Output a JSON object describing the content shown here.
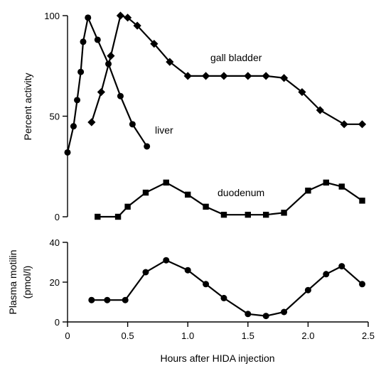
{
  "chart_data": [
    {
      "type": "line",
      "ylabel": "Percent activity",
      "ylim": [
        0,
        100
      ],
      "xlim": [
        0,
        2.5
      ],
      "yticks": [
        0,
        50,
        100
      ],
      "ytick_labels": [
        "0",
        "50",
        "100"
      ],
      "series": [
        {
          "name": "liver",
          "marker": "circle",
          "x": [
            0.0,
            0.05,
            0.08,
            0.11,
            0.13,
            0.17,
            0.25,
            0.34,
            0.44,
            0.54,
            0.66
          ],
          "y": [
            32,
            45,
            58,
            72,
            87,
            99,
            88,
            76,
            60,
            46,
            35
          ]
        },
        {
          "name": "gall bladder",
          "marker": "diamond",
          "x": [
            0.2,
            0.28,
            0.36,
            0.44,
            0.5,
            0.58,
            0.72,
            0.85,
            1.0,
            1.15,
            1.3,
            1.5,
            1.65,
            1.8,
            1.95,
            2.1,
            2.3,
            2.45
          ],
          "y": [
            47,
            62,
            80,
            100,
            99,
            95,
            86,
            77,
            70,
            70,
            70,
            70,
            70,
            69,
            62,
            53,
            46,
            46
          ]
        },
        {
          "name": "duodenum",
          "marker": "square",
          "x": [
            0.25,
            0.42,
            0.5,
            0.65,
            0.82,
            1.0,
            1.15,
            1.3,
            1.5,
            1.65,
            1.8,
            2.0,
            2.15,
            2.28,
            2.45
          ],
          "y": [
            0,
            0,
            5,
            12,
            17,
            11,
            5,
            1,
            1,
            1,
            2,
            13,
            17,
            15,
            8
          ]
        }
      ]
    },
    {
      "type": "line",
      "ylabel_lines": [
        "Plasma motilin",
        "(pmol/l)"
      ],
      "xlabel": "Hours after HIDA injection",
      "ylim": [
        0,
        40
      ],
      "xlim": [
        0,
        2.5
      ],
      "yticks": [
        0,
        20,
        40
      ],
      "ytick_labels": [
        "0",
        "20",
        "40"
      ],
      "xticks": [
        0,
        0.5,
        1.0,
        1.5,
        2.0,
        2.5
      ],
      "xtick_labels": [
        "0",
        "0.5",
        "1.0",
        "1.5",
        "2.0",
        "2.5"
      ],
      "series": [
        {
          "marker": "circle",
          "x": [
            0.2,
            0.33,
            0.48,
            0.65,
            0.82,
            1.0,
            1.15,
            1.3,
            1.5,
            1.65,
            1.8,
            2.0,
            2.15,
            2.28,
            2.45
          ],
          "y": [
            11,
            11,
            11,
            25,
            31,
            26,
            19,
            12,
            4,
            3,
            5,
            16,
            24,
            28,
            19
          ]
        }
      ]
    }
  ]
}
